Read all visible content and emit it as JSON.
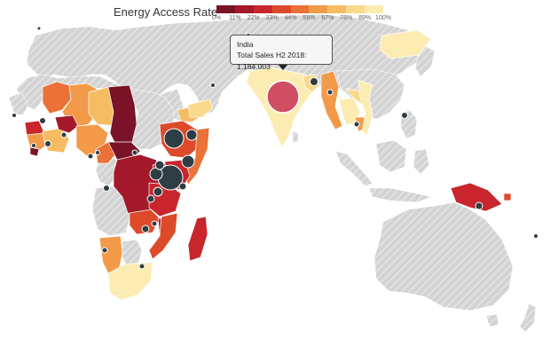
{
  "legend": {
    "title": "Energy Access Rate",
    "ticks": [
      "0%",
      "11%",
      "22%",
      "33%",
      "44%",
      "56%",
      "67%",
      "78%",
      "89%",
      "100%"
    ],
    "colors": [
      "#7a1228",
      "#a3182a",
      "#c8262c",
      "#dd4a2a",
      "#ea7138",
      "#f29a4a",
      "#f6bc63",
      "#f9d98a",
      "#fcecb2"
    ]
  },
  "tooltip": {
    "country": "India",
    "label": "Total Sales H2 2018: 1.184.003"
  },
  "colors": {
    "land_no_data": "#d3d3d3",
    "hatch": "#eeeeee",
    "bubble": "#2f3d45",
    "india_bubble": "#cf4e63"
  }
}
